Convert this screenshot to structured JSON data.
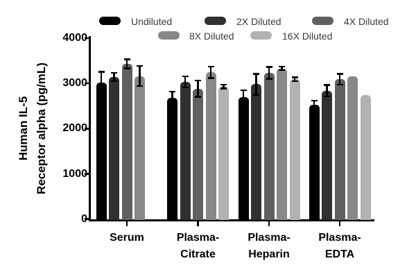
{
  "figure_bg": "#ffffff",
  "axis_color": "#000000",
  "legend_text_color": "#3a3a3a",
  "chart_data": {
    "type": "bar",
    "title": "",
    "ylabel_lines": [
      "Human IL-5",
      "Receptor alpha (pg/mL)"
    ],
    "ylabel": "Human IL-5 Receptor alpha (pg/mL)",
    "xlabel": "",
    "ylim": [
      0,
      4000
    ],
    "yticks": [
      0,
      1000,
      2000,
      3000,
      4000
    ],
    "grid": false,
    "legend_position": "top",
    "categories": [
      "Serum",
      "Plasma-\nCitrate",
      "Plasma-\nHeparin",
      "Plasma-\nEDTA"
    ],
    "series": [
      {
        "name": "Undiluted",
        "color": "#000000",
        "values": [
          3010,
          2680,
          2700,
          2530
        ],
        "errors": [
          250,
          140,
          150,
          90
        ]
      },
      {
        "name": "2X Diluted",
        "color": "#303030",
        "values": [
          3140,
          3030,
          2980,
          2840
        ],
        "errors": [
          95,
          125,
          235,
          130
        ]
      },
      {
        "name": "4X Diluted",
        "color": "#606060",
        "values": [
          3430,
          2880,
          3230,
          3090
        ],
        "errors": [
          105,
          185,
          135,
          125
        ]
      },
      {
        "name": "8X Diluted",
        "color": "#888888",
        "values": [
          3160,
          3240,
          3330,
          3150
        ],
        "errors": [
          225,
          130,
          40,
          0
        ]
      },
      {
        "name": "16X Diluted",
        "color": "#b2b2b2",
        "values": [
          null,
          2930,
          3090,
          2740
        ],
        "errors": [
          null,
          45,
          45,
          0
        ]
      }
    ],
    "notes": "Serum group has no visible 16X Diluted bar; error bars are black T-bars; some bars (8X/16X EDTA) show no error bar."
  }
}
